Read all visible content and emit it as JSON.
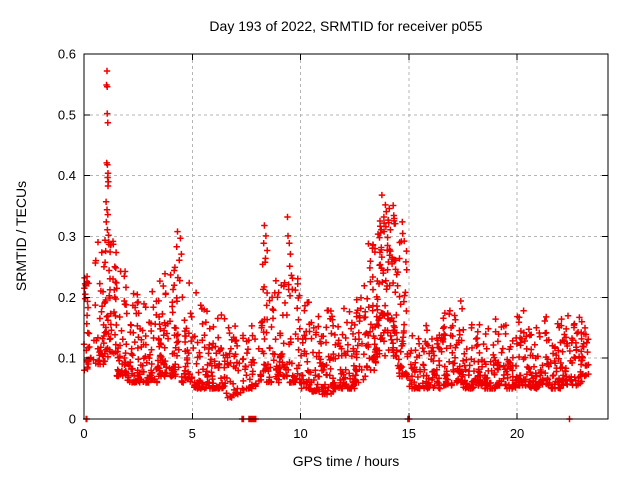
{
  "figure": {
    "background": "#ffffff"
  },
  "chart_data": {
    "type": "scatter",
    "title": "Day 193 of 2022, SRMTID for receiver p055",
    "xlabel": "GPS time / hours",
    "ylabel": "SRMTID / TECUs",
    "xlim": [
      0,
      24.2
    ],
    "ylim": [
      0,
      0.6
    ],
    "xticks": [
      0,
      5,
      10,
      15,
      20
    ],
    "xtick_labels": [
      "0",
      "5",
      "10",
      "15",
      "20"
    ],
    "yticks": [
      0,
      0.1,
      0.2,
      0.3,
      0.4,
      0.5,
      0.6
    ],
    "ytick_labels": [
      "0",
      "0.1",
      "0.2",
      "0.3",
      "0.4",
      "0.5",
      "0.6"
    ],
    "grid": true,
    "legend": null,
    "marker": {
      "shape": "plus",
      "color": "#ee0000",
      "size": 7,
      "stroke_width": 1.5
    },
    "axis_color": "#000000",
    "grid_color": "#b5b5b5",
    "series": [
      {
        "name": "SRMTID",
        "bins": [
          [
            0.0,
            0.25,
            0.08,
            0.235,
            25,
            1.5
          ],
          [
            0.25,
            0.5,
            0.09,
            0.16,
            6,
            2.0
          ],
          [
            0.5,
            1.0,
            0.09,
            0.3,
            40,
            2.0
          ],
          [
            1.0,
            1.5,
            0.1,
            0.3,
            45,
            1.8
          ],
          [
            1.5,
            2.0,
            0.07,
            0.25,
            40,
            2.0
          ],
          [
            2.0,
            2.5,
            0.06,
            0.21,
            38,
            2.2
          ],
          [
            2.5,
            3.0,
            0.06,
            0.19,
            38,
            2.2
          ],
          [
            3.0,
            3.5,
            0.06,
            0.22,
            38,
            2.2
          ],
          [
            3.5,
            4.0,
            0.07,
            0.245,
            38,
            2.0
          ],
          [
            4.0,
            4.5,
            0.07,
            0.26,
            40,
            2.0
          ],
          [
            4.5,
            5.0,
            0.06,
            0.235,
            36,
            2.2
          ],
          [
            5.0,
            5.5,
            0.05,
            0.21,
            34,
            2.2
          ],
          [
            5.5,
            6.0,
            0.05,
            0.19,
            36,
            2.2
          ],
          [
            6.0,
            6.5,
            0.05,
            0.19,
            36,
            2.4
          ],
          [
            6.5,
            7.0,
            0.035,
            0.155,
            30,
            2.2
          ],
          [
            7.0,
            7.5,
            0.04,
            0.14,
            22,
            2.0
          ],
          [
            7.5,
            8.0,
            0.05,
            0.19,
            26,
            2.4
          ],
          [
            8.0,
            8.5,
            0.06,
            0.26,
            30,
            2.4
          ],
          [
            8.5,
            9.0,
            0.06,
            0.24,
            32,
            2.4
          ],
          [
            9.0,
            9.5,
            0.07,
            0.27,
            36,
            2.4
          ],
          [
            9.5,
            10.0,
            0.06,
            0.24,
            36,
            2.4
          ],
          [
            10.0,
            10.5,
            0.05,
            0.2,
            36,
            2.4
          ],
          [
            10.5,
            11.0,
            0.045,
            0.17,
            36,
            2.2
          ],
          [
            11.0,
            11.5,
            0.04,
            0.18,
            36,
            2.2
          ],
          [
            11.5,
            12.0,
            0.05,
            0.165,
            36,
            2.2
          ],
          [
            12.0,
            12.5,
            0.05,
            0.185,
            36,
            2.2
          ],
          [
            12.5,
            13.0,
            0.06,
            0.22,
            36,
            2.0
          ],
          [
            13.0,
            13.5,
            0.08,
            0.3,
            42,
            1.6
          ],
          [
            13.5,
            14.0,
            0.1,
            0.345,
            52,
            1.35
          ],
          [
            14.0,
            14.5,
            0.1,
            0.335,
            52,
            1.4
          ],
          [
            14.5,
            15.0,
            0.07,
            0.3,
            40,
            1.8
          ],
          [
            15.0,
            15.5,
            0.05,
            0.175,
            30,
            2.2
          ],
          [
            15.5,
            16.0,
            0.05,
            0.16,
            30,
            2.2
          ],
          [
            16.0,
            16.5,
            0.05,
            0.165,
            32,
            2.2
          ],
          [
            16.5,
            17.0,
            0.055,
            0.18,
            34,
            2.2
          ],
          [
            17.0,
            17.5,
            0.06,
            0.195,
            34,
            2.0
          ],
          [
            17.5,
            18.0,
            0.05,
            0.155,
            34,
            2.2
          ],
          [
            18.0,
            18.5,
            0.055,
            0.165,
            34,
            2.2
          ],
          [
            18.5,
            19.0,
            0.05,
            0.15,
            34,
            2.2
          ],
          [
            19.0,
            19.5,
            0.055,
            0.165,
            34,
            2.2
          ],
          [
            19.5,
            20.0,
            0.05,
            0.155,
            34,
            2.2
          ],
          [
            20.0,
            20.5,
            0.055,
            0.18,
            34,
            2.2
          ],
          [
            20.5,
            21.0,
            0.05,
            0.15,
            34,
            2.2
          ],
          [
            21.0,
            21.5,
            0.055,
            0.168,
            34,
            2.2
          ],
          [
            21.5,
            22.0,
            0.05,
            0.16,
            34,
            2.2
          ],
          [
            22.0,
            22.5,
            0.055,
            0.17,
            34,
            2.0
          ],
          [
            22.5,
            23.0,
            0.055,
            0.168,
            36,
            2.0
          ],
          [
            23.0,
            23.3,
            0.07,
            0.165,
            20,
            1.8
          ]
        ],
        "outliers": [
          [
            1.06,
            0.572
          ],
          [
            1.04,
            0.549
          ],
          [
            1.07,
            0.546
          ],
          [
            1.07,
            0.502
          ],
          [
            1.1,
            0.487
          ],
          [
            1.05,
            0.421
          ],
          [
            1.08,
            0.418
          ],
          [
            1.11,
            0.404
          ],
          [
            1.09,
            0.397
          ],
          [
            1.12,
            0.39
          ],
          [
            1.11,
            0.383
          ],
          [
            1.02,
            0.357
          ],
          [
            1.06,
            0.344
          ],
          [
            1.1,
            0.336
          ],
          [
            1.03,
            0.324
          ],
          [
            1.08,
            0.311
          ],
          [
            1.13,
            0.302
          ],
          [
            0.97,
            0.294
          ],
          [
            1.15,
            0.287
          ],
          [
            1.0,
            0.276
          ],
          [
            0.03,
            0.232
          ],
          [
            0.05,
            0.222
          ],
          [
            0.02,
            0.215
          ],
          [
            0.06,
            0.205
          ],
          [
            4.32,
            0.308
          ],
          [
            4.45,
            0.297
          ],
          [
            4.28,
            0.283
          ],
          [
            4.5,
            0.271
          ],
          [
            4.4,
            0.261
          ],
          [
            8.33,
            0.318
          ],
          [
            8.4,
            0.301
          ],
          [
            8.3,
            0.289
          ],
          [
            8.46,
            0.277
          ],
          [
            8.38,
            0.264
          ],
          [
            9.4,
            0.332
          ],
          [
            9.42,
            0.301
          ],
          [
            9.48,
            0.289
          ],
          [
            9.53,
            0.271
          ],
          [
            9.5,
            0.251
          ],
          [
            9.58,
            0.236
          ],
          [
            9.45,
            0.221
          ],
          [
            9.62,
            0.213
          ],
          [
            13.76,
            0.368
          ],
          [
            13.92,
            0.352
          ],
          [
            14.28,
            0.351
          ],
          [
            13.96,
            0.341
          ],
          [
            13.85,
            0.332
          ],
          [
            14.05,
            0.327
          ],
          [
            14.33,
            0.321
          ],
          [
            13.68,
            0.317
          ],
          [
            14.15,
            0.311
          ],
          [
            13.58,
            0.304
          ],
          [
            14.7,
            0.324
          ],
          [
            14.72,
            0.305
          ],
          [
            14.66,
            0.292
          ],
          [
            14.1,
            0.346
          ],
          [
            17.4,
            0.194
          ],
          [
            16.9,
            0.178
          ],
          [
            20.3,
            0.178
          ],
          [
            22.88,
            0.167
          ]
        ],
        "zeros": [
          0.1,
          0.13,
          7.3,
          7.36,
          7.62,
          7.68,
          7.73,
          7.78,
          7.83,
          7.88,
          7.93,
          14.96,
          15.02,
          22.42
        ]
      }
    ]
  }
}
